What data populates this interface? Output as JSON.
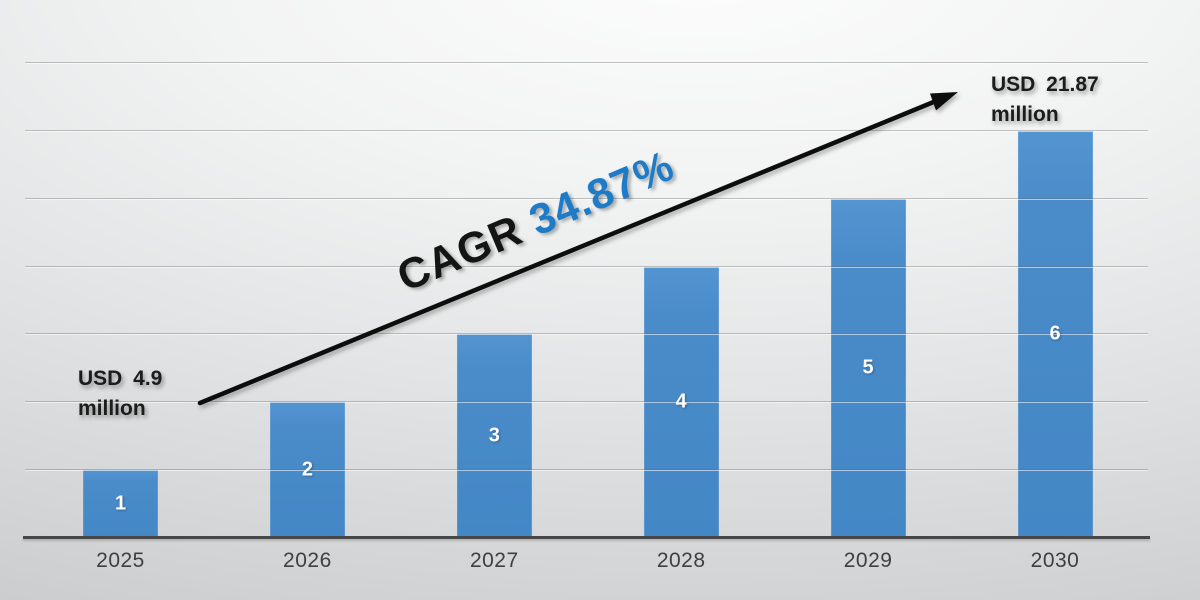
{
  "chart_data": {
    "type": "bar",
    "categories": [
      "2025",
      "2026",
      "2027",
      "2028",
      "2029",
      "2030"
    ],
    "values": [
      1,
      2,
      3,
      4,
      5,
      6
    ],
    "bar_labels": [
      "1",
      "2",
      "3",
      "4",
      "5",
      "6"
    ],
    "title": "",
    "xlabel": "",
    "ylabel": "",
    "ylim": [
      0,
      7
    ],
    "grid": "horizontal gridlines every 1 unit, no y-axis tick labels",
    "legend": "none",
    "colors": {
      "bar": "#4a8cc9",
      "bar_label": "#ffffff",
      "axis_line": "#474747",
      "tick_label": "#3d3f41",
      "gridline": "#9a9a9a"
    }
  },
  "annotations": {
    "start_value": {
      "line1": "USD 4.9",
      "line2": "million"
    },
    "end_value": {
      "line1": "USD 21.87",
      "line2": "million"
    },
    "cagr": {
      "prefix": "CAGR ",
      "value": "34.87%",
      "prefix_color": "#141414",
      "value_color": "#1e7bc8"
    },
    "trend_arrow_color": "#0d0d0d"
  }
}
